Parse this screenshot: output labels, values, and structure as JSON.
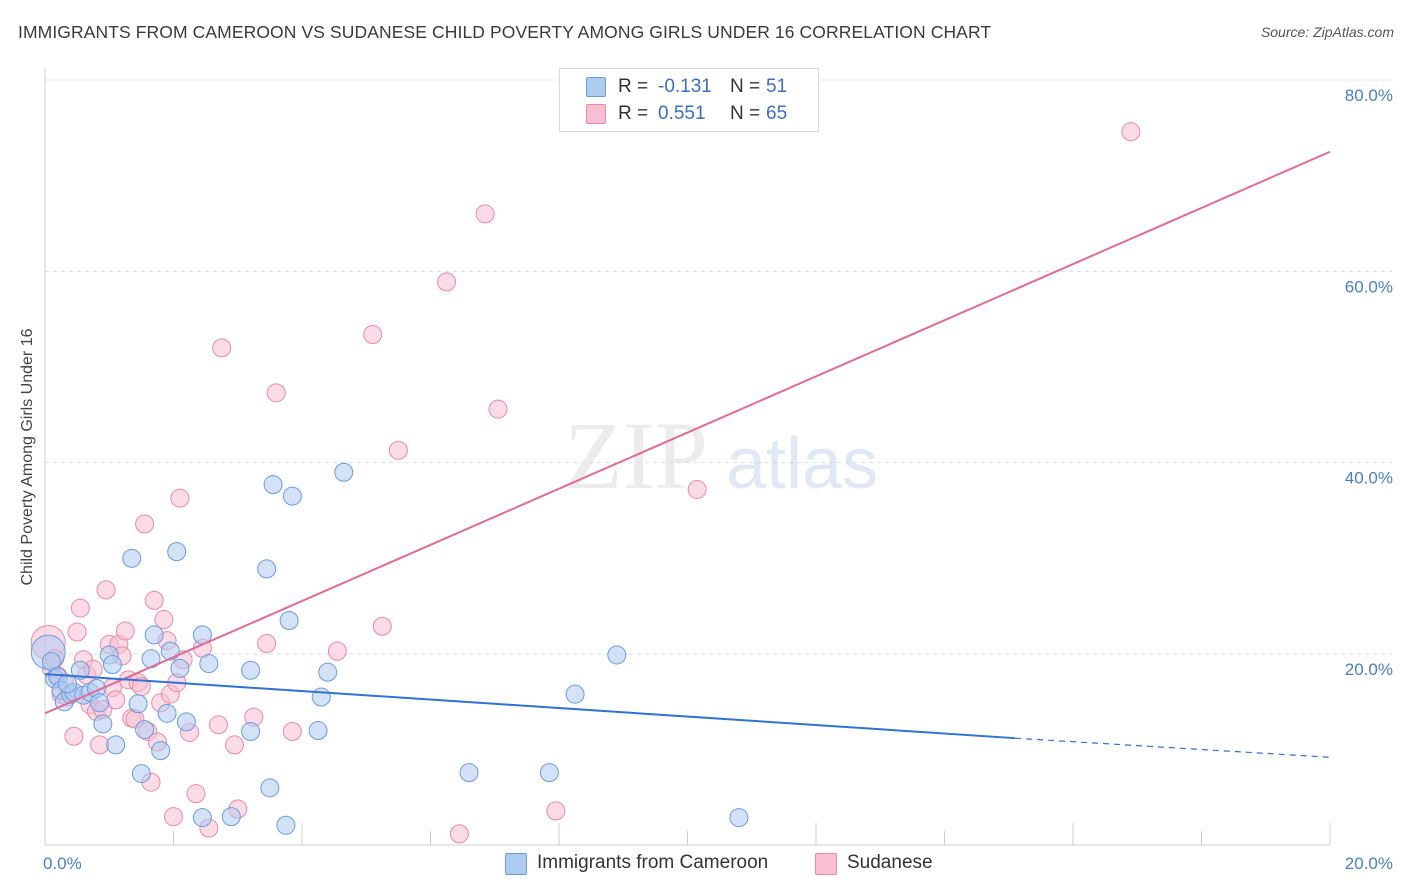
{
  "title": "IMMIGRANTS FROM CAMEROON VS SUDANESE CHILD POVERTY AMONG GIRLS UNDER 16 CORRELATION CHART",
  "source": "Source: ZipAtlas.com",
  "watermark": {
    "zip": "ZIP",
    "atlas": "atlas"
  },
  "legend": {
    "r_label": "R =",
    "n_label": "N =",
    "rows": [
      {
        "r": "-0.131",
        "n": "51"
      },
      {
        "r": "0.551",
        "n": "65"
      }
    ]
  },
  "bottom_legend": [
    "Immigrants from Cameroon",
    "Sudanese"
  ],
  "colors": {
    "cameroon_fill": "#aecbf0",
    "cameroon_stroke": "#6b9be0",
    "cameroon_line": "#2f73d3",
    "sudanese_fill": "#f7bfd1",
    "sudanese_stroke": "#e88aa8",
    "sudanese_line": "#e06b96",
    "tick_text": "#4a7fc7",
    "grid": "#dddddd"
  },
  "chart_data": {
    "type": "scatter",
    "title": "IMMIGRANTS FROM CAMEROON VS SUDANESE CHILD POVERTY AMONG GIRLS UNDER 16 CORRELATION CHART",
    "xlabel": "",
    "ylabel": "Child Poverty Among Girls Under 16",
    "xlim": [
      0,
      20
    ],
    "ylim": [
      0,
      82
    ],
    "x_ticks": [
      "0.0%",
      "20.0%"
    ],
    "y_ticks": [
      {
        "value": 20,
        "label": "20.0%"
      },
      {
        "value": 40,
        "label": "40.0%"
      },
      {
        "value": 60,
        "label": "60.0%"
      },
      {
        "value": 80,
        "label": "80.0%"
      }
    ],
    "grid": true,
    "legend_position": "top-center",
    "series": [
      {
        "name": "Immigrants from Cameroon",
        "r": -0.131,
        "n": 51,
        "trend": {
          "x0": 0,
          "y0": 17.9,
          "x1": 15.1,
          "y1": 11.2,
          "dashed_to_x": 20,
          "dashed_to_y": 9.2
        },
        "points": [
          [
            0.05,
            20.2
          ],
          [
            0.1,
            19.2
          ],
          [
            0.15,
            17.4
          ],
          [
            0.2,
            17.6
          ],
          [
            0.25,
            16.2
          ],
          [
            0.3,
            15.0
          ],
          [
            0.4,
            15.8
          ],
          [
            0.45,
            16.0
          ],
          [
            0.55,
            18.3
          ],
          [
            0.6,
            15.7
          ],
          [
            0.7,
            16.0
          ],
          [
            0.8,
            16.4
          ],
          [
            0.85,
            14.9
          ],
          [
            0.9,
            12.7
          ],
          [
            1.0,
            19.9
          ],
          [
            1.05,
            18.9
          ],
          [
            1.1,
            10.5
          ],
          [
            1.35,
            30.0
          ],
          [
            1.45,
            14.8
          ],
          [
            1.5,
            7.5
          ],
          [
            1.55,
            12.1
          ],
          [
            1.65,
            19.5
          ],
          [
            1.7,
            22.0
          ],
          [
            1.8,
            9.9
          ],
          [
            1.9,
            13.8
          ],
          [
            1.95,
            20.3
          ],
          [
            2.05,
            30.7
          ],
          [
            2.1,
            18.5
          ],
          [
            2.2,
            12.9
          ],
          [
            2.45,
            2.9
          ],
          [
            2.45,
            22.0
          ],
          [
            2.55,
            19.0
          ],
          [
            2.9,
            3.0
          ],
          [
            3.2,
            11.9
          ],
          [
            3.2,
            18.3
          ],
          [
            3.45,
            28.9
          ],
          [
            3.5,
            6.0
          ],
          [
            3.55,
            37.7
          ],
          [
            3.75,
            2.1
          ],
          [
            3.8,
            23.5
          ],
          [
            3.85,
            36.5
          ],
          [
            4.25,
            12.0
          ],
          [
            4.3,
            15.5
          ],
          [
            4.4,
            18.1
          ],
          [
            4.65,
            39.0
          ],
          [
            6.6,
            7.6
          ],
          [
            7.85,
            7.6
          ],
          [
            8.25,
            15.8
          ],
          [
            8.9,
            19.9
          ],
          [
            10.8,
            2.9
          ],
          [
            0.35,
            16.9
          ]
        ]
      },
      {
        "name": "Sudanese",
        "r": 0.551,
        "n": 65,
        "trend": {
          "x0": 0,
          "y0": 13.8,
          "x1": 20,
          "y1": 72.5
        },
        "points": [
          [
            0.05,
            21.2
          ],
          [
            0.1,
            18.5
          ],
          [
            0.15,
            19.5
          ],
          [
            0.2,
            17.7
          ],
          [
            0.25,
            15.8
          ],
          [
            0.3,
            17.0
          ],
          [
            0.35,
            15.5
          ],
          [
            0.45,
            11.4
          ],
          [
            0.5,
            22.3
          ],
          [
            0.55,
            24.8
          ],
          [
            0.6,
            19.4
          ],
          [
            0.65,
            17.8
          ],
          [
            0.7,
            14.7
          ],
          [
            0.75,
            18.4
          ],
          [
            0.8,
            14.0
          ],
          [
            0.85,
            10.5
          ],
          [
            0.9,
            14.2
          ],
          [
            0.95,
            26.7
          ],
          [
            1.0,
            21.0
          ],
          [
            1.05,
            16.5
          ],
          [
            1.1,
            15.2
          ],
          [
            1.15,
            21.0
          ],
          [
            1.2,
            19.8
          ],
          [
            1.25,
            22.4
          ],
          [
            1.3,
            17.3
          ],
          [
            1.35,
            13.3
          ],
          [
            1.4,
            13.2
          ],
          [
            1.45,
            17.0
          ],
          [
            1.5,
            16.6
          ],
          [
            1.55,
            33.6
          ],
          [
            1.6,
            11.9
          ],
          [
            1.65,
            6.6
          ],
          [
            1.7,
            25.6
          ],
          [
            1.75,
            10.8
          ],
          [
            1.8,
            14.9
          ],
          [
            1.85,
            23.6
          ],
          [
            1.9,
            21.4
          ],
          [
            1.95,
            15.8
          ],
          [
            2.0,
            3.0
          ],
          [
            2.05,
            17.0
          ],
          [
            2.1,
            36.3
          ],
          [
            2.15,
            19.4
          ],
          [
            2.25,
            11.8
          ],
          [
            2.35,
            5.4
          ],
          [
            2.45,
            20.6
          ],
          [
            2.55,
            1.8
          ],
          [
            2.7,
            12.6
          ],
          [
            2.75,
            52.0
          ],
          [
            2.95,
            10.5
          ],
          [
            3.0,
            3.8
          ],
          [
            3.25,
            13.4
          ],
          [
            3.45,
            21.1
          ],
          [
            3.6,
            47.3
          ],
          [
            3.85,
            11.9
          ],
          [
            4.55,
            20.3
          ],
          [
            5.1,
            53.4
          ],
          [
            5.25,
            22.9
          ],
          [
            5.5,
            41.3
          ],
          [
            6.25,
            58.9
          ],
          [
            6.45,
            1.2
          ],
          [
            6.85,
            66.0
          ],
          [
            7.05,
            45.6
          ],
          [
            7.95,
            3.6
          ],
          [
            10.15,
            37.2
          ],
          [
            16.9,
            74.6
          ]
        ]
      }
    ]
  }
}
